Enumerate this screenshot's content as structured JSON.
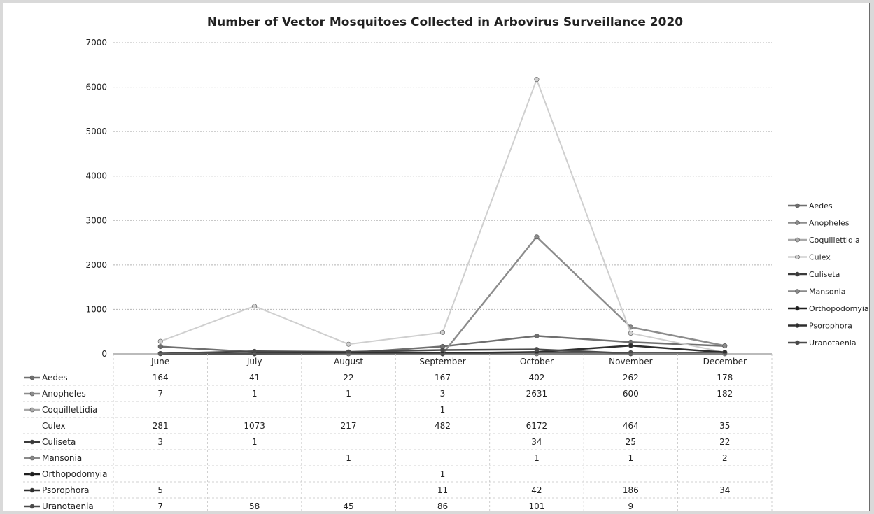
{
  "chart_data": {
    "type": "line",
    "title": "Number of Vector Mosquitoes Collected in Arbovirus Surveillance 2020",
    "categories": [
      "June",
      "July",
      "August",
      "September",
      "October",
      "November",
      "December"
    ],
    "ylim": [
      0,
      7000
    ],
    "yticks": [
      0,
      1000,
      2000,
      3000,
      4000,
      5000,
      6000,
      7000
    ],
    "grid": true,
    "legend_position": "right",
    "data_table": true,
    "series": [
      {
        "name": "Aedes",
        "values": [
          164,
          41,
          22,
          167,
          402,
          262,
          178
        ],
        "color": "#6f6f6f"
      },
      {
        "name": "Anopheles",
        "values": [
          7,
          1,
          1,
          3,
          2631,
          600,
          182
        ],
        "color": "#8c8c8c"
      },
      {
        "name": "Coquillettidia",
        "values": [
          null,
          null,
          null,
          1,
          null,
          null,
          null
        ],
        "color": "#a8a8a8"
      },
      {
        "name": "Culex",
        "values": [
          281,
          1073,
          217,
          482,
          6172,
          464,
          35
        ],
        "color": "#cfcfcf"
      },
      {
        "name": "Culiseta",
        "values": [
          3,
          1,
          null,
          null,
          34,
          25,
          22
        ],
        "color": "#3a3a3a"
      },
      {
        "name": "Mansonia",
        "values": [
          null,
          null,
          1,
          null,
          1,
          1,
          2
        ],
        "color": "#8a8a8a"
      },
      {
        "name": "Orthopodomyia",
        "values": [
          null,
          null,
          null,
          1,
          null,
          null,
          null
        ],
        "color": "#1e1e1e"
      },
      {
        "name": "Psorophora",
        "values": [
          5,
          null,
          null,
          11,
          42,
          186,
          34
        ],
        "color": "#2e2e2e"
      },
      {
        "name": "Uranotaenia",
        "values": [
          7,
          58,
          45,
          86,
          101,
          9,
          null
        ],
        "color": "#4a4a4a"
      }
    ]
  }
}
